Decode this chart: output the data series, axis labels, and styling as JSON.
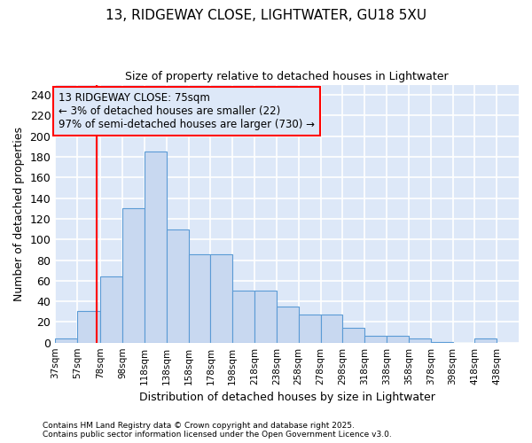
{
  "title_line1": "13, RIDGEWAY CLOSE, LIGHTWATER, GU18 5XU",
  "title_line2": "Size of property relative to detached houses in Lightwater",
  "xlabel": "Distribution of detached houses by size in Lightwater",
  "ylabel": "Number of detached properties",
  "bar_left_edges": [
    37,
    57,
    78,
    98,
    118,
    138,
    158,
    178,
    198,
    218,
    238,
    258,
    278,
    298,
    318,
    338,
    358,
    378,
    398,
    418
  ],
  "bar_widths": [
    20,
    21,
    20,
    20,
    20,
    20,
    20,
    20,
    20,
    20,
    20,
    20,
    20,
    20,
    20,
    20,
    20,
    20,
    20,
    20
  ],
  "bar_heights": [
    4,
    31,
    64,
    130,
    185,
    110,
    86,
    86,
    50,
    50,
    35,
    27,
    27,
    14,
    7,
    7,
    4,
    1,
    0,
    4
  ],
  "bar_color": "#c8d8f0",
  "bar_edge_color": "#5b9bd5",
  "xlim_left": 37,
  "xlim_right": 458,
  "ylim_top": 250,
  "yticks": [
    0,
    20,
    40,
    60,
    80,
    100,
    120,
    140,
    160,
    180,
    200,
    220,
    240
  ],
  "xtick_labels": [
    "37sqm",
    "57sqm",
    "78sqm",
    "98sqm",
    "118sqm",
    "138sqm",
    "158sqm",
    "178sqm",
    "198sqm",
    "218sqm",
    "238sqm",
    "258sqm",
    "278sqm",
    "298sqm",
    "318sqm",
    "338sqm",
    "358sqm",
    "378sqm",
    "398sqm",
    "418sqm",
    "438sqm"
  ],
  "xtick_positions": [
    37,
    57,
    78,
    98,
    118,
    138,
    158,
    178,
    198,
    218,
    238,
    258,
    278,
    298,
    318,
    338,
    358,
    378,
    398,
    418,
    438
  ],
  "red_line_x": 75,
  "annotation_text": "13 RIDGEWAY CLOSE: 75sqm\n← 3% of detached houses are smaller (22)\n97% of semi-detached houses are larger (730) →",
  "fig_bg_color": "#ffffff",
  "plot_bg_color": "#dde8f8",
  "grid_color": "#ffffff",
  "footnote_line1": "Contains HM Land Registry data © Crown copyright and database right 2025.",
  "footnote_line2": "Contains public sector information licensed under the Open Government Licence v3.0."
}
